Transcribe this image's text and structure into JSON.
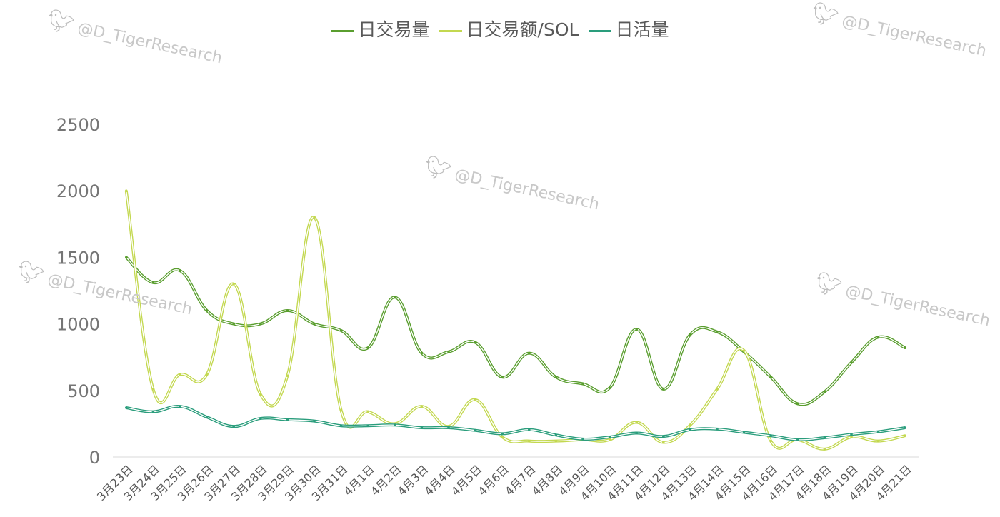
{
  "watermark": "@D_TigerResearch",
  "chart_data": {
    "type": "line",
    "categories": [
      "3月23日",
      "3月24日",
      "3月25日",
      "3月26日",
      "3月27日",
      "3月28日",
      "3月29日",
      "3月30日",
      "3月31日",
      "4月1日",
      "4月2日",
      "4月3日",
      "4月4日",
      "4月5日",
      "4月6日",
      "4月7日",
      "4月8日",
      "4月9日",
      "4月10日",
      "4月11日",
      "4月12日",
      "4月13日",
      "4月14日",
      "4月15日",
      "4月16日",
      "4月17日",
      "4月18日",
      "4月19日",
      "4月20日",
      "4月21日"
    ],
    "ylim": [
      0,
      2500
    ],
    "yticks": [
      0,
      500,
      1000,
      1500,
      2000,
      2500
    ],
    "legend_position": "top",
    "series": [
      {
        "name": "日交易量",
        "color": "#5a9e2f",
        "values": [
          1500,
          1310,
          1400,
          1100,
          1000,
          1000,
          1100,
          1000,
          950,
          820,
          1200,
          780,
          790,
          860,
          600,
          780,
          600,
          550,
          520,
          960,
          510,
          920,
          940,
          790,
          600,
          400,
          490,
          710,
          900,
          820
        ]
      },
      {
        "name": "日交易额/SOL",
        "color": "#c3d850",
        "values": [
          2000,
          510,
          620,
          620,
          1300,
          470,
          610,
          1800,
          350,
          340,
          250,
          380,
          230,
          430,
          150,
          120,
          120,
          130,
          130,
          260,
          110,
          240,
          510,
          800,
          120,
          130,
          60,
          150,
          120,
          160
        ]
      },
      {
        "name": "日活量",
        "color": "#2a9d7c",
        "values": [
          370,
          340,
          380,
          300,
          230,
          290,
          280,
          270,
          235,
          235,
          240,
          220,
          220,
          200,
          175,
          205,
          165,
          135,
          150,
          180,
          155,
          205,
          210,
          185,
          160,
          130,
          145,
          170,
          190,
          220
        ]
      }
    ]
  }
}
